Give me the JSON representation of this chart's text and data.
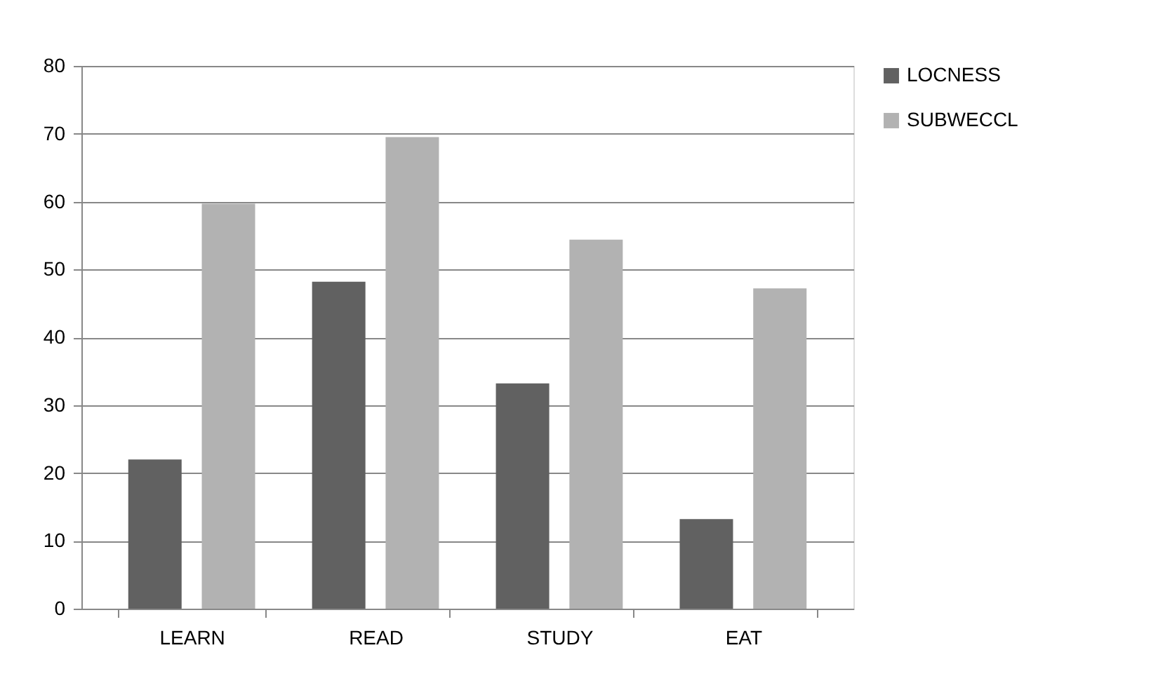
{
  "chart_data": {
    "type": "bar",
    "categories": [
      "LEARN",
      "READ",
      "STUDY",
      "EAT"
    ],
    "series": [
      {
        "name": "LOCNESS",
        "color": "#616161",
        "values": [
          22,
          48.2,
          33.2,
          13.2
        ]
      },
      {
        "name": "SUBWECCL",
        "color": "#b2b2b2",
        "values": [
          59.7,
          69.5,
          54.4,
          47.2
        ]
      }
    ],
    "ylim": [
      0,
      80
    ],
    "yticks": [
      0,
      10,
      20,
      30,
      40,
      50,
      60,
      70,
      80
    ],
    "grid": "y",
    "legend": "right"
  }
}
